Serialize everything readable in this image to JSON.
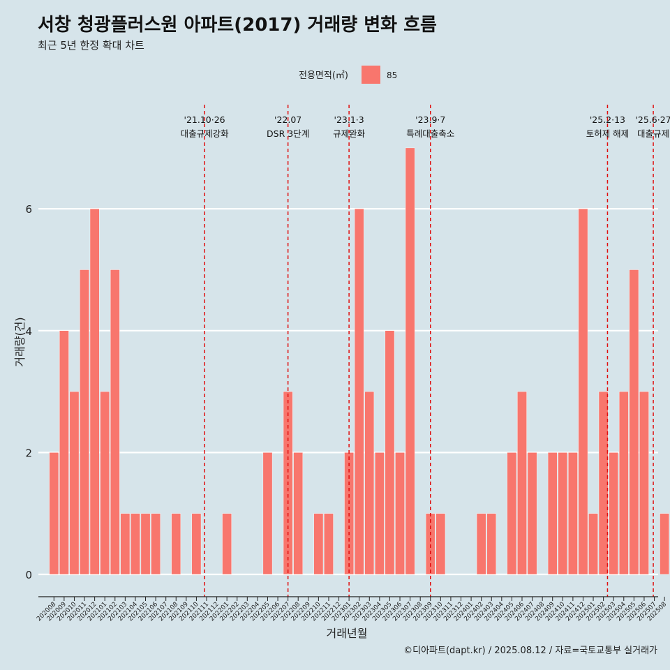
{
  "title": "서창 청광플러스원 아파트(2017) 거래량 변화 흐름",
  "subtitle": "최근 5년 한정 확대 차트",
  "legend": {
    "title": "전용면적(㎡)",
    "label": "85",
    "color": "#f8766d"
  },
  "caption": "©디아파트(dapt.kr) / 2025.08.12 / 자료=국토교통부 실거래가",
  "chart_data": {
    "type": "bar",
    "xlabel": "거래년월",
    "ylabel": "거래량(건)",
    "ylim": [
      0,
      7.2
    ],
    "yticks": [
      0,
      2,
      4,
      6
    ],
    "grid": true,
    "legend_position": "top",
    "categories": [
      "202008",
      "202009",
      "202010",
      "202011",
      "202012",
      "202101",
      "202102",
      "202103",
      "202104",
      "202105",
      "202106",
      "202107",
      "202108",
      "202109",
      "202110",
      "202111",
      "202112",
      "202201",
      "202202",
      "202203",
      "202204",
      "202205",
      "202206",
      "202207",
      "202208",
      "202209",
      "202210",
      "202211",
      "202212",
      "202301",
      "202302",
      "202303",
      "202304",
      "202305",
      "202306",
      "202307",
      "202308",
      "202309",
      "202310",
      "202311",
      "202312",
      "202401",
      "202402",
      "202403",
      "202404",
      "202405",
      "202406",
      "202407",
      "202408",
      "202409",
      "202410",
      "202411",
      "202412",
      "202501",
      "202502",
      "202503",
      "202504",
      "202505",
      "202506",
      "202507",
      "202508"
    ],
    "series": [
      {
        "name": "85",
        "color": "#f8766d",
        "values": [
          2,
          4,
          3,
          5,
          6,
          3,
          5,
          1,
          1,
          1,
          1,
          0,
          1,
          0,
          1,
          0,
          0,
          1,
          0,
          0,
          0,
          2,
          0,
          3,
          2,
          0,
          1,
          1,
          0,
          2,
          6,
          3,
          2,
          4,
          2,
          7,
          0,
          1,
          1,
          0,
          0,
          0,
          1,
          1,
          0,
          2,
          3,
          2,
          0,
          2,
          2,
          2,
          6,
          1,
          3,
          2,
          3,
          5,
          3,
          0,
          1
        ]
      }
    ],
    "events": [
      {
        "date_line1": "'21.10·26",
        "date_line2": "대출규제강화",
        "x": "202110.8"
      },
      {
        "date_line1": "'22.07",
        "date_line2": "DSR 3단계",
        "x": "202207"
      },
      {
        "date_line1": "'23.1·3",
        "date_line2": "규제완화",
        "x": "202301"
      },
      {
        "date_line1": "'23.9·7",
        "date_line2": "특례대출축소",
        "x": "202309"
      },
      {
        "date_line1": "'25.2·13",
        "date_line2": "토허제 해제",
        "x": "202502.4"
      },
      {
        "date_line1": "'25.6·27",
        "date_line2": "대출규제",
        "x": "202506.9"
      }
    ]
  }
}
